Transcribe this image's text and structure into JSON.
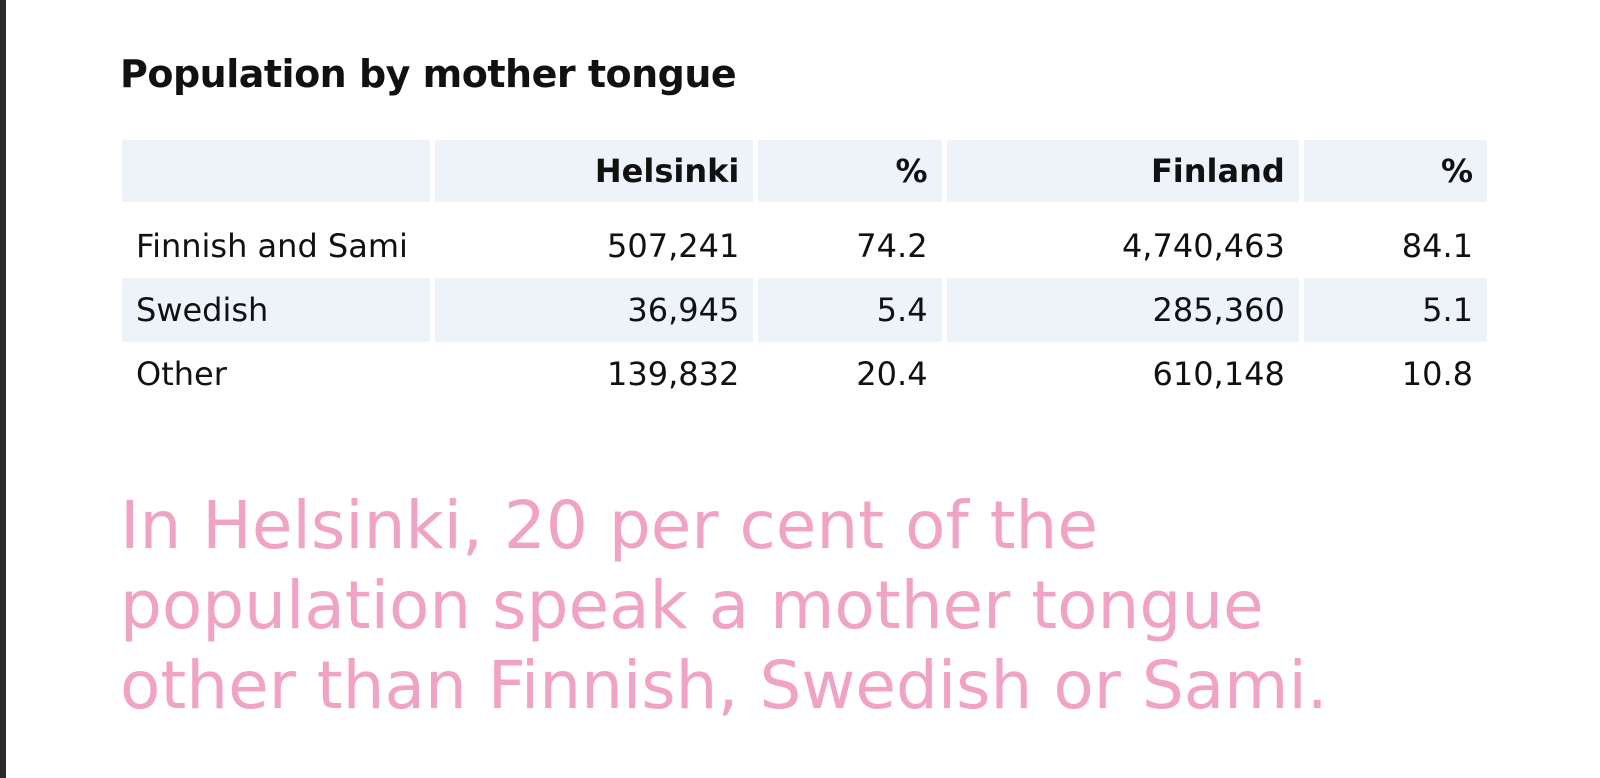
{
  "title": "Population by mother tongue",
  "table": {
    "header": [
      "Helsinki",
      "%",
      "Finland",
      "%"
    ],
    "rows": [
      [
        "Finnish and Sami",
        "507,241",
        "74.2",
        "4,740,463",
        "84.1"
      ],
      [
        "Swedish",
        "36,945",
        "5.4",
        "285,360",
        "5.1"
      ],
      [
        "Other",
        "139,832",
        "20.4",
        "610,148",
        "10.8"
      ]
    ]
  },
  "callout": "In Helsinki, 20 per cent of the population speak a mother tongue other than Finnish, Swedish or Sami."
}
